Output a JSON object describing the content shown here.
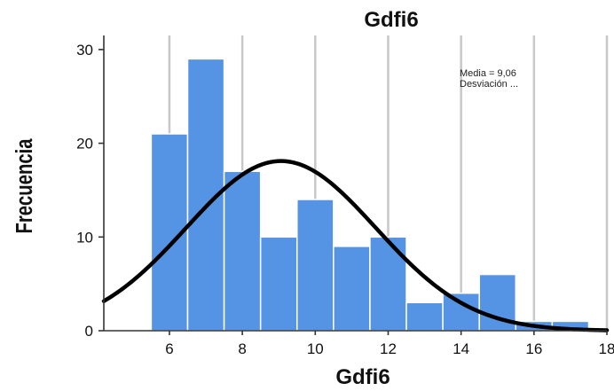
{
  "chart_data": {
    "type": "bar",
    "title": "Gdfi6",
    "xlabel": "Gdfi6",
    "ylabel": "Frecuencia",
    "xlim": [
      4.2,
      18
    ],
    "ylim": [
      0,
      31.5
    ],
    "x_ticks": [
      "6",
      "8",
      "10",
      "12",
      "14",
      "16",
      "18"
    ],
    "y_ticks": [
      "0",
      "10",
      "20",
      "30"
    ],
    "grid": "vertical",
    "bin_width": 1,
    "bins": [
      {
        "center": 6,
        "value": 21
      },
      {
        "center": 7,
        "value": 29
      },
      {
        "center": 8,
        "value": 17
      },
      {
        "center": 9,
        "value": 10
      },
      {
        "center": 10,
        "value": 14
      },
      {
        "center": 11,
        "value": 9
      },
      {
        "center": 12,
        "value": 10
      },
      {
        "center": 13,
        "value": 3
      },
      {
        "center": 14,
        "value": 4
      },
      {
        "center": 15,
        "value": 6
      },
      {
        "center": 16,
        "value": 1
      },
      {
        "center": 17,
        "value": 1
      }
    ],
    "normal_curve": {
      "mean": 9.06,
      "peak": 18.1,
      "sd": 2.6
    },
    "stats": {
      "mean_label": "Media = 9,06",
      "sd_label": "Desviación ..."
    },
    "colors": {
      "bar": "#5593e4",
      "curve": "#000000",
      "grid": "#c8c8c8"
    }
  }
}
